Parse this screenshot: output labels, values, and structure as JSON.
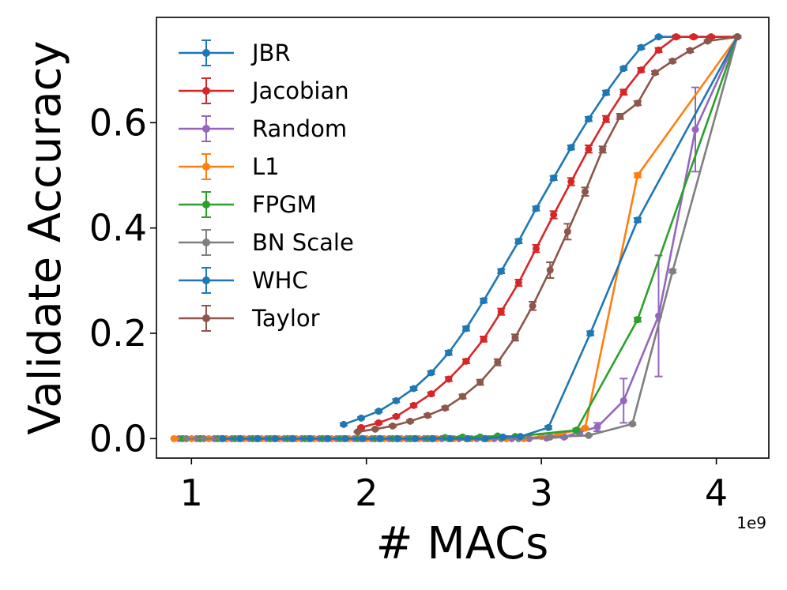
{
  "chart_data": {
    "type": "line",
    "title": "",
    "xlabel": "# MACs",
    "ylabel": "Validate Accuracy",
    "x_offset_label": "1e9",
    "xlim": [
      0.8,
      4.3
    ],
    "ylim": [
      -0.037,
      0.8
    ],
    "xticks": [
      1,
      2,
      3,
      4
    ],
    "xtick_labels": [
      "1",
      "2",
      "3",
      "4"
    ],
    "yticks": [
      0.0,
      0.2,
      0.4,
      0.6
    ],
    "ytick_labels": [
      "0.0",
      "0.2",
      "0.4",
      "0.6"
    ],
    "legend_position": "upper-left",
    "series": [
      {
        "name": "JBR",
        "color": "#1f77b4",
        "x": [
          1.87,
          1.97,
          2.07,
          2.17,
          2.27,
          2.37,
          2.47,
          2.57,
          2.67,
          2.77,
          2.87,
          2.97,
          3.07,
          3.17,
          3.27,
          3.37,
          3.47,
          3.57,
          3.67,
          3.77,
          3.87,
          3.97,
          4.12
        ],
        "y": [
          0.027,
          0.039,
          0.052,
          0.072,
          0.095,
          0.125,
          0.163,
          0.209,
          0.262,
          0.318,
          0.375,
          0.437,
          0.495,
          0.553,
          0.607,
          0.657,
          0.703,
          0.743,
          0.763,
          0.763,
          0.763,
          0.763,
          0.763
        ],
        "err": [
          0.002,
          0.002,
          0.002,
          0.003,
          0.003,
          0.003,
          0.004,
          0.004,
          0.004,
          0.004,
          0.004,
          0.004,
          0.004,
          0.004,
          0.004,
          0.004,
          0.003,
          0.003,
          0.002,
          0.002,
          0.002,
          0.002,
          0.002
        ]
      },
      {
        "name": "Jacobian",
        "color": "#d62728",
        "x": [
          1.97,
          2.07,
          2.17,
          2.27,
          2.37,
          2.47,
          2.57,
          2.67,
          2.77,
          2.87,
          2.97,
          3.07,
          3.17,
          3.27,
          3.37,
          3.47,
          3.57,
          3.67,
          3.77,
          3.87,
          3.97,
          4.12
        ],
        "y": [
          0.021,
          0.03,
          0.042,
          0.063,
          0.085,
          0.113,
          0.147,
          0.189,
          0.241,
          0.296,
          0.361,
          0.425,
          0.488,
          0.55,
          0.607,
          0.658,
          0.7,
          0.738,
          0.763,
          0.763,
          0.763,
          0.763
        ],
        "err": [
          0.002,
          0.002,
          0.002,
          0.003,
          0.003,
          0.004,
          0.004,
          0.005,
          0.006,
          0.006,
          0.007,
          0.007,
          0.007,
          0.007,
          0.006,
          0.005,
          0.004,
          0.004,
          0.003,
          0.003,
          0.002,
          0.002
        ]
      },
      {
        "name": "Random",
        "color": "#9467bd",
        "x": [
          0.93,
          1.03,
          1.13,
          1.23,
          1.33,
          1.43,
          1.53,
          1.63,
          1.73,
          1.83,
          1.93,
          2.03,
          2.13,
          2.23,
          2.33,
          2.43,
          2.53,
          2.63,
          2.73,
          2.83,
          2.93,
          3.03,
          3.13,
          3.22,
          3.32,
          3.47,
          3.67,
          3.88,
          4.12
        ],
        "y": [
          0.0,
          0.0,
          0.0,
          0.0,
          0.0,
          0.0,
          0.0,
          0.0,
          0.0,
          0.0,
          0.0,
          0.0,
          0.0,
          0.0,
          0.0,
          0.0,
          0.0,
          0.0,
          0.0,
          0.0,
          0.0,
          0.001,
          0.003,
          0.013,
          0.022,
          0.072,
          0.233,
          0.587,
          0.763
        ],
        "err": [
          0,
          0,
          0,
          0,
          0,
          0,
          0,
          0,
          0,
          0,
          0,
          0,
          0,
          0,
          0,
          0,
          0,
          0,
          0,
          0,
          0,
          0.001,
          0.002,
          0.006,
          0.008,
          0.042,
          0.115,
          0.08,
          0.002
        ]
      },
      {
        "name": "L1",
        "color": "#ff7f0e",
        "x": [
          0.9,
          1.0,
          1.1,
          1.2,
          1.3,
          1.4,
          1.5,
          1.6,
          1.7,
          1.8,
          1.9,
          2.0,
          2.1,
          2.2,
          2.3,
          2.4,
          2.5,
          2.6,
          2.7,
          2.8,
          2.9,
          3.0,
          3.1,
          3.25,
          3.55,
          4.12
        ],
        "y": [
          0.0,
          0.0,
          0.0,
          0.0,
          0.0,
          0.0,
          0.0,
          0.0,
          0.0,
          0.0,
          0.0,
          0.0,
          0.0,
          0.0,
          0.0,
          0.0,
          0.0,
          0.0,
          0.0,
          0.0,
          0.0,
          0.004,
          0.008,
          0.02,
          0.5,
          0.763
        ],
        "err": [
          0,
          0,
          0,
          0,
          0,
          0,
          0,
          0,
          0,
          0,
          0,
          0,
          0,
          0,
          0,
          0,
          0,
          0,
          0,
          0,
          0,
          0.001,
          0.001,
          0.002,
          0.004,
          0.002
        ]
      },
      {
        "name": "FPGM",
        "color": "#2ca02c",
        "x": [
          0.95,
          1.05,
          1.15,
          1.25,
          1.35,
          1.45,
          1.55,
          1.65,
          1.75,
          1.85,
          1.95,
          2.05,
          2.15,
          2.25,
          2.35,
          2.45,
          2.55,
          2.65,
          2.75,
          2.85,
          3.2,
          3.55,
          4.12
        ],
        "y": [
          0.0,
          0.0,
          0.0,
          0.0,
          0.0,
          0.0,
          0.0,
          0.0,
          0.0,
          0.0,
          0.0,
          0.0,
          0.0,
          0.0,
          0.0,
          0.002,
          0.003,
          0.003,
          0.005,
          0.004,
          0.016,
          0.226,
          0.763
        ],
        "err": [
          0,
          0,
          0,
          0,
          0,
          0,
          0,
          0,
          0,
          0,
          0,
          0,
          0,
          0,
          0,
          0.001,
          0.001,
          0.001,
          0.001,
          0.001,
          0.003,
          0.004,
          0.002
        ]
      },
      {
        "name": "BN Scale",
        "color": "#7f7f7f",
        "x": [
          0.97,
          1.07,
          1.17,
          1.27,
          1.37,
          1.47,
          1.57,
          1.67,
          1.77,
          1.87,
          1.97,
          2.07,
          2.17,
          2.27,
          2.37,
          2.47,
          2.57,
          2.67,
          2.77,
          2.87,
          3.05,
          3.27,
          3.52,
          3.75,
          4.12
        ],
        "y": [
          0.0,
          0.0,
          0.0,
          0.0,
          0.0,
          0.0,
          0.0,
          0.0,
          0.0,
          0.0,
          0.0,
          0.0,
          0.0,
          0.0,
          0.0,
          0.0,
          0.0,
          0.0,
          0.0,
          0.0,
          0.003,
          0.006,
          0.028,
          0.318,
          0.763
        ],
        "err": [
          0,
          0,
          0,
          0,
          0,
          0,
          0,
          0,
          0,
          0,
          0,
          0,
          0,
          0,
          0,
          0,
          0,
          0,
          0,
          0,
          0.001,
          0.001,
          0.002,
          0.003,
          0.002
        ]
      },
      {
        "name": "WHC",
        "color": "#1f77b4",
        "x": [
          1.18,
          1.28,
          1.38,
          1.48,
          1.58,
          1.68,
          1.78,
          1.88,
          1.98,
          2.08,
          2.18,
          2.28,
          2.38,
          2.48,
          2.58,
          2.68,
          2.78,
          2.88,
          3.04,
          3.28,
          3.55,
          4.12
        ],
        "y": [
          0.0,
          0.0,
          0.0,
          0.0,
          0.0,
          0.0,
          0.0,
          0.0,
          0.0,
          0.0,
          0.0,
          0.0,
          0.0,
          0.0,
          0.0,
          0.0,
          0.003,
          0.004,
          0.021,
          0.2,
          0.415,
          0.763
        ],
        "err": [
          0,
          0,
          0,
          0,
          0,
          0,
          0,
          0,
          0,
          0,
          0,
          0,
          0,
          0,
          0,
          0,
          0.001,
          0.001,
          0.003,
          0.004,
          0.004,
          0.002
        ]
      },
      {
        "name": "Taylor",
        "color": "#8c564b",
        "x": [
          1.95,
          2.05,
          2.15,
          2.25,
          2.35,
          2.45,
          2.55,
          2.65,
          2.75,
          2.85,
          2.95,
          3.05,
          3.15,
          3.25,
          3.35,
          3.45,
          3.55,
          3.65,
          3.75,
          3.85,
          3.95,
          4.12
        ],
        "y": [
          0.013,
          0.018,
          0.024,
          0.033,
          0.044,
          0.058,
          0.08,
          0.107,
          0.145,
          0.192,
          0.252,
          0.32,
          0.393,
          0.469,
          0.549,
          0.612,
          0.637,
          0.695,
          0.717,
          0.737,
          0.755,
          0.763
        ],
        "err": [
          0.001,
          0.001,
          0.002,
          0.002,
          0.003,
          0.003,
          0.004,
          0.005,
          0.006,
          0.006,
          0.008,
          0.015,
          0.015,
          0.008,
          0.006,
          0.005,
          0.004,
          0.003,
          0.003,
          0.003,
          0.002,
          0.002
        ]
      }
    ]
  }
}
